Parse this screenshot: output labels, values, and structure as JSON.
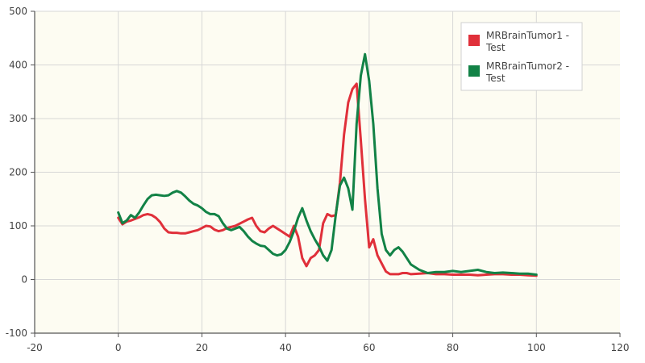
{
  "chart_data": {
    "type": "line",
    "title": "",
    "xlabel": "",
    "ylabel": "",
    "xlim": [
      -20,
      120
    ],
    "ylim": [
      -100,
      500
    ],
    "xticks": [
      -20,
      0,
      20,
      40,
      60,
      80,
      100,
      120
    ],
    "yticks": [
      -100,
      0,
      100,
      200,
      300,
      400,
      500
    ],
    "grid": true,
    "legend_position": "top-right",
    "colors": {
      "plot_background": "#fdfcf2",
      "grid": "#d7d7d7"
    },
    "series": [
      {
        "name": "MRBrainTumor1 - Test",
        "color": "#e0303a",
        "x": [
          0,
          1,
          2,
          3,
          4,
          5,
          6,
          7,
          8,
          9,
          10,
          11,
          12,
          13,
          14,
          15,
          16,
          17,
          18,
          19,
          20,
          21,
          22,
          23,
          24,
          25,
          26,
          27,
          28,
          29,
          30,
          31,
          32,
          33,
          34,
          35,
          36,
          37,
          38,
          39,
          40,
          41,
          42,
          43,
          44,
          45,
          46,
          47,
          48,
          49,
          50,
          51,
          52,
          53,
          54,
          55,
          56,
          57,
          58,
          59,
          60,
          61,
          62,
          63,
          64,
          65,
          66,
          67,
          68,
          69,
          70,
          72,
          74,
          76,
          78,
          80,
          82,
          84,
          86,
          88,
          90,
          92,
          94,
          96,
          98,
          100
        ],
        "y": [
          115,
          103,
          108,
          110,
          113,
          116,
          120,
          122,
          120,
          115,
          107,
          95,
          88,
          87,
          87,
          86,
          86,
          88,
          90,
          92,
          96,
          100,
          99,
          93,
          90,
          92,
          96,
          98,
          100,
          104,
          108,
          112,
          115,
          100,
          90,
          88,
          95,
          100,
          95,
          90,
          85,
          80,
          100,
          80,
          40,
          25,
          40,
          45,
          55,
          105,
          122,
          118,
          120,
          180,
          270,
          330,
          355,
          365,
          260,
          150,
          60,
          75,
          45,
          30,
          15,
          10,
          10,
          10,
          12,
          12,
          10,
          11,
          12,
          10,
          10,
          9,
          9,
          9,
          8,
          9,
          10,
          10,
          9,
          9,
          8,
          7
        ]
      },
      {
        "name": "MRBrainTumor2 - Test",
        "color": "#128246",
        "x": [
          0,
          1,
          2,
          3,
          4,
          5,
          6,
          7,
          8,
          9,
          10,
          11,
          12,
          13,
          14,
          15,
          16,
          17,
          18,
          19,
          20,
          21,
          22,
          23,
          24,
          25,
          26,
          27,
          28,
          29,
          30,
          31,
          32,
          33,
          34,
          35,
          36,
          37,
          38,
          39,
          40,
          41,
          42,
          43,
          44,
          45,
          46,
          47,
          48,
          49,
          50,
          51,
          52,
          53,
          54,
          55,
          56,
          57,
          58,
          59,
          60,
          61,
          62,
          63,
          64,
          65,
          66,
          67,
          68,
          69,
          70,
          72,
          74,
          76,
          78,
          80,
          82,
          84,
          86,
          88,
          90,
          92,
          94,
          96,
          98,
          100
        ],
        "y": [
          125,
          105,
          110,
          120,
          115,
          125,
          138,
          150,
          157,
          158,
          157,
          156,
          157,
          162,
          165,
          162,
          155,
          147,
          141,
          138,
          133,
          126,
          122,
          122,
          118,
          105,
          95,
          92,
          95,
          98,
          90,
          80,
          72,
          67,
          63,
          62,
          55,
          48,
          45,
          47,
          55,
          70,
          90,
          115,
          133,
          110,
          90,
          75,
          62,
          45,
          35,
          55,
          120,
          175,
          190,
          170,
          130,
          290,
          380,
          420,
          370,
          290,
          170,
          85,
          55,
          45,
          55,
          60,
          52,
          40,
          28,
          18,
          12,
          14,
          14,
          16,
          14,
          16,
          18,
          14,
          12,
          13,
          12,
          11,
          11,
          9
        ]
      }
    ]
  }
}
